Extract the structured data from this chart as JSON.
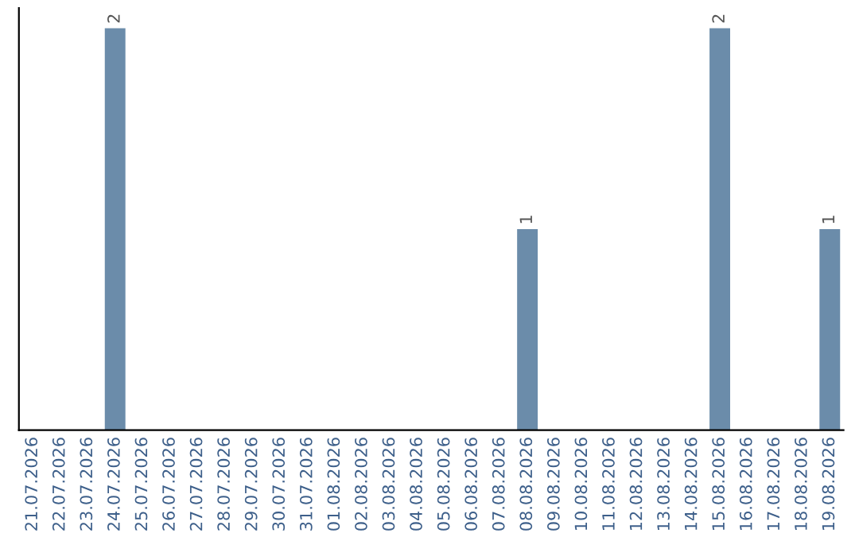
{
  "chart_data": {
    "type": "bar",
    "categories": [
      "21.07.2026",
      "22.07.2026",
      "23.07.2026",
      "24.07.2026",
      "25.07.2026",
      "26.07.2026",
      "27.07.2026",
      "28.07.2026",
      "29.07.2026",
      "30.07.2026",
      "31.07.2026",
      "01.08.2026",
      "02.08.2026",
      "03.08.2026",
      "04.08.2026",
      "05.08.2026",
      "06.08.2026",
      "07.08.2026",
      "08.08.2026",
      "09.08.2026",
      "10.08.2026",
      "11.08.2026",
      "12.08.2026",
      "13.08.2026",
      "14.08.2026",
      "15.08.2026",
      "16.08.2026",
      "17.08.2026",
      "18.08.2026",
      "19.08.2026"
    ],
    "values": [
      0,
      0,
      0,
      2,
      0,
      0,
      0,
      0,
      0,
      0,
      0,
      0,
      0,
      0,
      0,
      0,
      0,
      0,
      1,
      0,
      0,
      0,
      0,
      0,
      0,
      2,
      0,
      0,
      0,
      1
    ],
    "value_labels": [
      null,
      null,
      null,
      "2",
      null,
      null,
      null,
      null,
      null,
      null,
      null,
      null,
      null,
      null,
      null,
      null,
      null,
      null,
      "1",
      null,
      null,
      null,
      null,
      null,
      null,
      "2",
      null,
      null,
      null,
      "1"
    ],
    "color": "#6b8caa",
    "ylim": [
      0,
      2.1
    ],
    "tick_labels": "x",
    "grid": false,
    "legend": false
  }
}
